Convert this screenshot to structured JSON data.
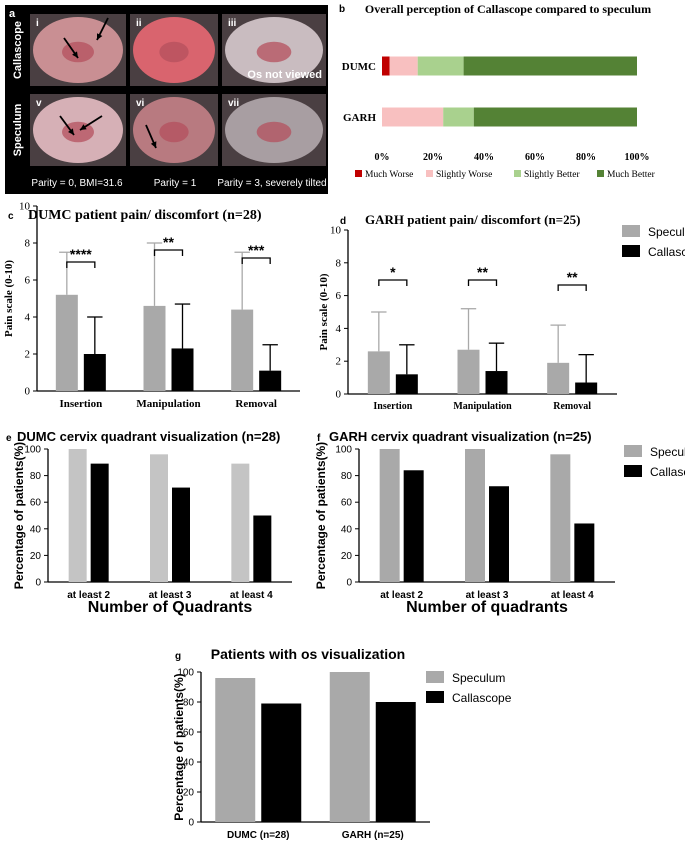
{
  "panel_letters": {
    "a": "a",
    "b": "b",
    "c": "c",
    "d": "d",
    "e": "e",
    "f": "f",
    "g": "g"
  },
  "photos": {
    "row_labels": [
      "Callascope",
      "Speculum"
    ],
    "cells": [
      {
        "numeral": "i",
        "tone": "#c98f93"
      },
      {
        "numeral": "ii",
        "tone": "#d9646e"
      },
      {
        "numeral": "iii",
        "tone": "#c9bcc0",
        "note": "Os not viewed"
      },
      {
        "numeral": "v",
        "tone": "#d6b0b6"
      },
      {
        "numeral": "vi",
        "tone": "#b87a80"
      },
      {
        "numeral": "vii",
        "tone": "#a89ea2"
      }
    ],
    "captions": [
      "Parity = 0, BMI=31.6",
      "Parity = 1",
      "Parity = 3, severely tilted"
    ]
  },
  "colors": {
    "speculum": "#a9a9a9",
    "speculum_light": "#c4c4c4",
    "callascope": "#000000",
    "much_worse": "#c00000",
    "slightly_worse": "#f8c0c0",
    "slightly_better": "#a9d18e",
    "much_better": "#548235"
  },
  "chart_data": [
    {
      "panel": "b",
      "type": "bar",
      "orientation": "horizontal-stacked",
      "title": "Overall perception of Callascope compared to speculum",
      "categories": [
        "DUMC",
        "GARH"
      ],
      "series": [
        {
          "name": "Much Worse",
          "values": [
            3,
            0
          ]
        },
        {
          "name": "Slightly Worse",
          "values": [
            11,
            24
          ]
        },
        {
          "name": "Slightly Better",
          "values": [
            18,
            12
          ]
        },
        {
          "name": "Much Better",
          "values": [
            68,
            64
          ]
        }
      ],
      "xlim": [
        0,
        100
      ],
      "xticks": [
        "0%",
        "20%",
        "40%",
        "60%",
        "80%",
        "100%"
      ],
      "legend": "bottom"
    },
    {
      "panel": "c",
      "type": "bar",
      "title": "DUMC patient pain/ discomfort (n=28)",
      "ylabel": "Pain scale (0-10)",
      "categories": [
        "Insertion",
        "Manipulation",
        "Removal"
      ],
      "series": [
        {
          "name": "Speculum",
          "values": [
            5.2,
            4.6,
            4.4
          ],
          "errors": [
            2.3,
            3.4,
            3.1
          ]
        },
        {
          "name": "Callascope",
          "values": [
            2.0,
            2.3,
            1.1
          ],
          "errors": [
            2.0,
            2.4,
            1.4
          ]
        }
      ],
      "significance": [
        "****",
        "**",
        "***"
      ],
      "ylim": [
        0,
        10
      ],
      "yticks": [
        "0",
        "2",
        "4",
        "6",
        "8",
        "10"
      ]
    },
    {
      "panel": "d",
      "type": "bar",
      "title": "GARH patient pain/ discomfort (n=25)",
      "ylabel": "Pain scale (0-10)",
      "categories": [
        "Insertion",
        "Manipulation",
        "Removal"
      ],
      "series": [
        {
          "name": "Speculum",
          "values": [
            2.6,
            2.7,
            1.9
          ],
          "errors": [
            2.4,
            2.5,
            2.3
          ]
        },
        {
          "name": "Callascope",
          "values": [
            1.2,
            1.4,
            0.7
          ],
          "errors": [
            1.8,
            1.7,
            1.7
          ]
        }
      ],
      "significance": [
        "*",
        "**",
        "**"
      ],
      "ylim": [
        0,
        10
      ],
      "yticks": [
        "0",
        "2",
        "4",
        "6",
        "8",
        "10"
      ],
      "legend": "right"
    },
    {
      "panel": "e",
      "type": "bar",
      "title": "DUMC cervix quadrant visualization (n=28)",
      "xlabel": "Number of Quadrants",
      "ylabel": "Percentage of patients(%)",
      "categories": [
        "at least 2",
        "at least 3",
        "at least 4"
      ],
      "series": [
        {
          "name": "Speculum",
          "values": [
            100,
            96,
            89
          ]
        },
        {
          "name": "Callascope",
          "values": [
            89,
            71,
            50
          ]
        }
      ],
      "ylim": [
        0,
        100
      ],
      "yticks": [
        "0",
        "20",
        "40",
        "60",
        "80",
        "100"
      ]
    },
    {
      "panel": "f",
      "type": "bar",
      "title": "GARH cervix quadrant visualization (n=25)",
      "xlabel": "Number of quadrants",
      "ylabel": "Percentage of patients(%)",
      "categories": [
        "at least 2",
        "at least 3",
        "at least 4"
      ],
      "series": [
        {
          "name": "Speculum",
          "values": [
            100,
            100,
            96
          ]
        },
        {
          "name": "Callascope",
          "values": [
            84,
            72,
            44
          ]
        }
      ],
      "ylim": [
        0,
        100
      ],
      "yticks": [
        "0",
        "20",
        "40",
        "60",
        "80",
        "100"
      ],
      "legend": "right"
    },
    {
      "panel": "g",
      "type": "bar",
      "title": "Patients with os visualization",
      "ylabel": "Percentage of patients(%)",
      "categories": [
        "DUMC (n=28)",
        "GARH (n=25)"
      ],
      "series": [
        {
          "name": "Speculum",
          "values": [
            96,
            100
          ]
        },
        {
          "name": "Callascope",
          "values": [
            79,
            80
          ]
        }
      ],
      "ylim": [
        0,
        100
      ],
      "yticks": [
        "0",
        "20",
        "40",
        "60",
        "80",
        "100"
      ],
      "legend": "right"
    }
  ]
}
